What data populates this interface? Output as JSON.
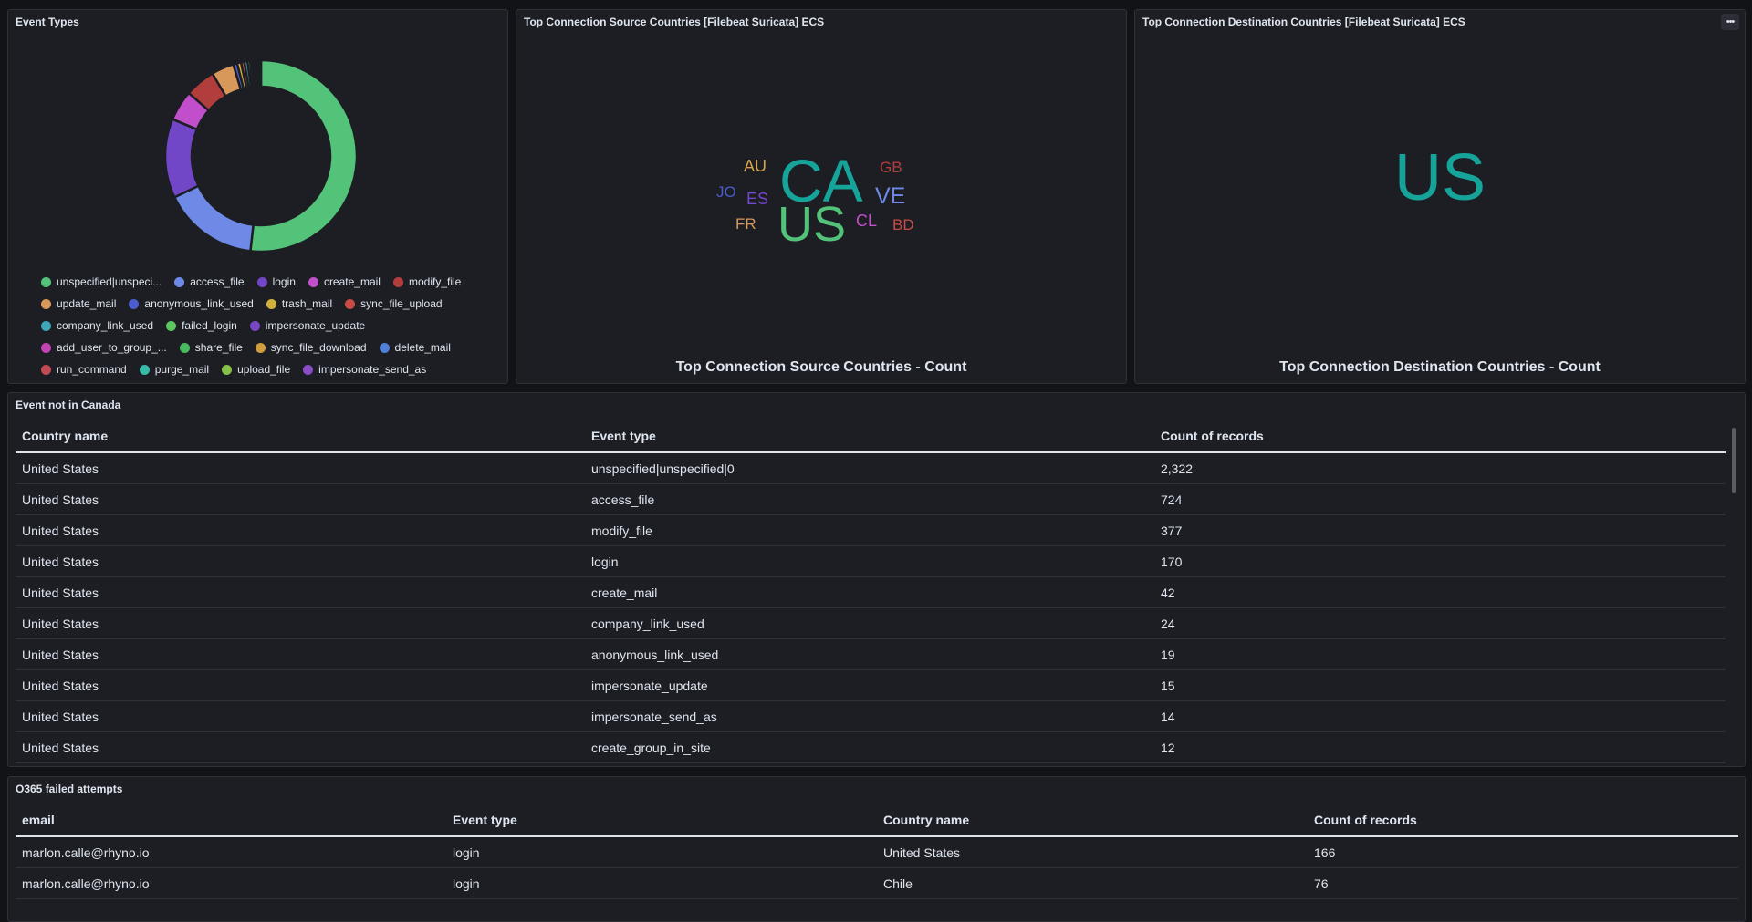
{
  "panels": {
    "event_types": {
      "title": "Event Types"
    },
    "source_countries": {
      "title": "Top Connection Source Countries [Filebeat Suricata] ECS",
      "metric_label": "Top Connection Source Countries - Count"
    },
    "destination_countries": {
      "title": "Top Connection Destination Countries [Filebeat Suricata] ECS",
      "metric_label": "Top Connection Destination Countries - Count",
      "menu_icon": "ellipsis-icon",
      "menu_glyph": "•••"
    },
    "not_in_canada": {
      "title": "Event not in Canada"
    },
    "o365_failed": {
      "title": "O365 failed attempts"
    }
  },
  "chart_data": [
    {
      "type": "pie",
      "variant": "donut",
      "title": "Event Types",
      "slices": [
        {
          "label": "unspecified|unspecified|0",
          "value": 2322,
          "color": "#54c37a"
        },
        {
          "label": "access_file",
          "value": 724,
          "color": "#6e8ae6"
        },
        {
          "label": "login",
          "value": 600,
          "color": "#7146c7"
        },
        {
          "label": "create_mail",
          "value": 230,
          "color": "#c14fcb"
        },
        {
          "label": "modify_file",
          "value": 230,
          "color": "#b23d3d"
        },
        {
          "label": "update_mail",
          "value": 170,
          "color": "#d8985a"
        },
        {
          "label": "anonymous_link_used",
          "value": 30,
          "color": "#4b5ccc"
        },
        {
          "label": "trash_mail",
          "value": 30,
          "color": "#d2b03c"
        },
        {
          "label": "sync_file_upload",
          "value": 25,
          "color": "#c74b44"
        },
        {
          "label": "company_link_used",
          "value": 24,
          "color": "#3ea8b8"
        },
        {
          "label": "failed_login",
          "value": 20,
          "color": "#5cc65f"
        },
        {
          "label": "impersonate_update",
          "value": 15,
          "color": "#7846c4"
        },
        {
          "label": "add_user_to_group_...",
          "value": 12,
          "color": "#c244b4"
        },
        {
          "label": "share_file",
          "value": 10,
          "color": "#48bb60"
        },
        {
          "label": "sync_file_download",
          "value": 8,
          "color": "#d09c3c"
        },
        {
          "label": "delete_mail",
          "value": 7,
          "color": "#4f7fd6"
        },
        {
          "label": "run_command",
          "value": 6,
          "color": "#c24a55"
        },
        {
          "label": "purge_mail",
          "value": 5,
          "color": "#36bba9"
        },
        {
          "label": "upload_file",
          "value": 4,
          "color": "#87c048"
        },
        {
          "label": "impersonate_send_as",
          "value": 14,
          "color": "#8a4cc6"
        }
      ],
      "legend_labels": [
        "unspecified|unspeci...",
        "access_file",
        "login",
        "create_mail",
        "modify_file",
        "update_mail",
        "anonymous_link_used",
        "trash_mail",
        "sync_file_upload",
        "company_link_used",
        "failed_login",
        "impersonate_update",
        "add_user_to_group_...",
        "share_file",
        "sync_file_download",
        "delete_mail",
        "run_command",
        "purge_mail",
        "upload_file",
        "impersonate_send_as"
      ]
    }
  ],
  "word_cloud": [
    {
      "text": "CA",
      "color": "#16a39a",
      "weight": 5
    },
    {
      "text": "US",
      "color": "#54c37a",
      "weight": 4
    },
    {
      "text": "AU",
      "color": "#d6a24b",
      "weight": 1
    },
    {
      "text": "GB",
      "color": "#b23d3d",
      "weight": 1
    },
    {
      "text": "JO",
      "color": "#4b5ccc",
      "weight": 1
    },
    {
      "text": "ES",
      "color": "#7146c7",
      "weight": 1
    },
    {
      "text": "VE",
      "color": "#6e8ae6",
      "weight": 2
    },
    {
      "text": "FR",
      "color": "#d8985a",
      "weight": 1
    },
    {
      "text": "CL",
      "color": "#c14fcb",
      "weight": 1
    },
    {
      "text": "BD",
      "color": "#c74b44",
      "weight": 1
    }
  ],
  "destination_value": {
    "text": "US",
    "color": "#16a39a"
  },
  "not_in_canada_table": {
    "columns": [
      "Country name",
      "Event type",
      "Count of records"
    ],
    "rows": [
      [
        "United States",
        "unspecified|unspecified|0",
        "2,322"
      ],
      [
        "United States",
        "access_file",
        "724"
      ],
      [
        "United States",
        "modify_file",
        "377"
      ],
      [
        "United States",
        "login",
        "170"
      ],
      [
        "United States",
        "create_mail",
        "42"
      ],
      [
        "United States",
        "company_link_used",
        "24"
      ],
      [
        "United States",
        "anonymous_link_used",
        "19"
      ],
      [
        "United States",
        "impersonate_update",
        "15"
      ],
      [
        "United States",
        "impersonate_send_as",
        "14"
      ],
      [
        "United States",
        "create_group_in_site",
        "12"
      ]
    ]
  },
  "o365_table": {
    "columns": [
      "email",
      "Event type",
      "Country name",
      "Count of records"
    ],
    "rows": [
      [
        "marlon.calle@rhyno.io",
        "login",
        "United States",
        "166"
      ],
      [
        "marlon.calle@rhyno.io",
        "login",
        "Chile",
        "76"
      ]
    ]
  }
}
